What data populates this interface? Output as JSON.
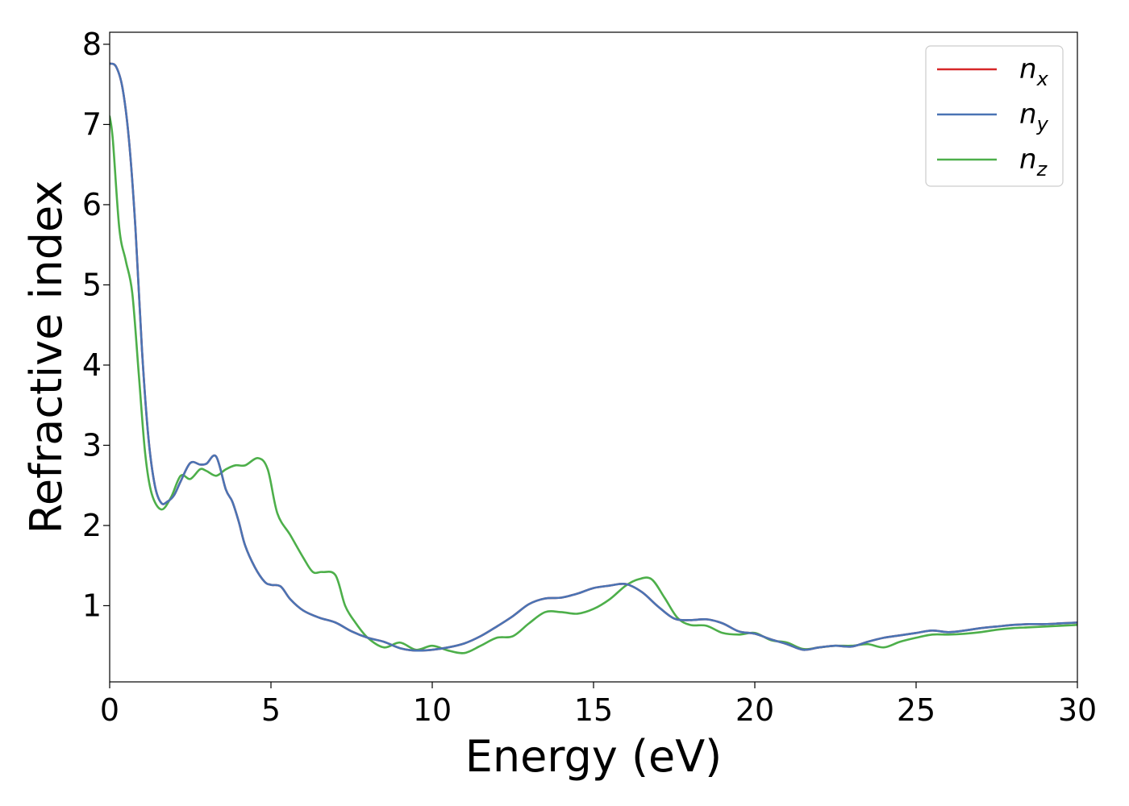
{
  "chart_data": {
    "type": "line",
    "xlabel": "Energy (eV)",
    "ylabel": "Refractive index",
    "xlim": [
      0,
      30
    ],
    "ylim": [
      0.05,
      8.15
    ],
    "xticks": [
      0,
      5,
      10,
      15,
      20,
      25,
      30
    ],
    "yticks": [
      1,
      2,
      3,
      4,
      5,
      6,
      7,
      8
    ],
    "grid": false,
    "legend_position": "top-right",
    "series": [
      {
        "name": "n",
        "sub": "x",
        "color": "#d62728",
        "x": [
          0,
          0.2,
          0.4,
          0.6,
          0.8,
          1.0,
          1.2,
          1.4,
          1.6,
          1.8,
          2.0,
          2.2,
          2.5,
          2.8,
          3.0,
          3.3,
          3.6,
          3.8,
          4.0,
          4.2,
          4.5,
          4.8,
          5.0,
          5.3,
          5.6,
          6.0,
          6.5,
          7.0,
          7.5,
          8.0,
          8.5,
          9.0,
          9.5,
          10.0,
          10.5,
          11.0,
          11.5,
          12.0,
          12.5,
          13.0,
          13.5,
          14.0,
          14.5,
          15.0,
          15.5,
          16.0,
          16.5,
          17.0,
          17.5,
          18.0,
          18.5,
          19.0,
          19.5,
          20.0,
          20.5,
          21.0,
          21.5,
          22.0,
          22.5,
          23.0,
          23.5,
          24.0,
          24.5,
          25.0,
          25.5,
          26.0,
          26.5,
          27.0,
          27.5,
          28.0,
          28.5,
          29.0,
          29.5,
          30.0
        ],
        "y": [
          7.76,
          7.72,
          7.45,
          6.8,
          5.7,
          4.2,
          3.1,
          2.5,
          2.28,
          2.3,
          2.38,
          2.55,
          2.78,
          2.76,
          2.77,
          2.86,
          2.45,
          2.3,
          2.05,
          1.75,
          1.48,
          1.3,
          1.26,
          1.24,
          1.08,
          0.94,
          0.85,
          0.79,
          0.68,
          0.6,
          0.55,
          0.47,
          0.44,
          0.45,
          0.48,
          0.53,
          0.62,
          0.74,
          0.87,
          1.02,
          1.09,
          1.1,
          1.15,
          1.22,
          1.25,
          1.27,
          1.17,
          0.99,
          0.84,
          0.82,
          0.83,
          0.78,
          0.68,
          0.65,
          0.58,
          0.52,
          0.45,
          0.48,
          0.5,
          0.49,
          0.55,
          0.6,
          0.63,
          0.66,
          0.69,
          0.67,
          0.69,
          0.72,
          0.74,
          0.76,
          0.77,
          0.77,
          0.78,
          0.79
        ]
      },
      {
        "name": "n",
        "sub": "y",
        "color": "#4a74b4",
        "x": [
          0,
          0.2,
          0.4,
          0.6,
          0.8,
          1.0,
          1.2,
          1.4,
          1.6,
          1.8,
          2.0,
          2.2,
          2.5,
          2.8,
          3.0,
          3.3,
          3.6,
          3.8,
          4.0,
          4.2,
          4.5,
          4.8,
          5.0,
          5.3,
          5.6,
          6.0,
          6.5,
          7.0,
          7.5,
          8.0,
          8.5,
          9.0,
          9.5,
          10.0,
          10.5,
          11.0,
          11.5,
          12.0,
          12.5,
          13.0,
          13.5,
          14.0,
          14.5,
          15.0,
          15.5,
          16.0,
          16.5,
          17.0,
          17.5,
          18.0,
          18.5,
          19.0,
          19.5,
          20.0,
          20.5,
          21.0,
          21.5,
          22.0,
          22.5,
          23.0,
          23.5,
          24.0,
          24.5,
          25.0,
          25.5,
          26.0,
          26.5,
          27.0,
          27.5,
          28.0,
          28.5,
          29.0,
          29.5,
          30.0
        ],
        "y": [
          7.76,
          7.72,
          7.45,
          6.8,
          5.7,
          4.2,
          3.1,
          2.5,
          2.28,
          2.3,
          2.38,
          2.55,
          2.78,
          2.76,
          2.77,
          2.86,
          2.45,
          2.3,
          2.05,
          1.75,
          1.48,
          1.3,
          1.26,
          1.24,
          1.08,
          0.94,
          0.85,
          0.79,
          0.68,
          0.6,
          0.55,
          0.47,
          0.44,
          0.45,
          0.48,
          0.53,
          0.62,
          0.74,
          0.87,
          1.02,
          1.09,
          1.1,
          1.15,
          1.22,
          1.25,
          1.27,
          1.17,
          0.99,
          0.84,
          0.82,
          0.83,
          0.78,
          0.68,
          0.65,
          0.58,
          0.52,
          0.45,
          0.48,
          0.5,
          0.49,
          0.55,
          0.6,
          0.63,
          0.66,
          0.69,
          0.67,
          0.69,
          0.72,
          0.74,
          0.76,
          0.77,
          0.77,
          0.78,
          0.79
        ]
      },
      {
        "name": "n",
        "sub": "z",
        "color": "#4daf4a",
        "x": [
          0,
          0.1,
          0.3,
          0.5,
          0.7,
          0.9,
          1.1,
          1.3,
          1.6,
          1.9,
          2.2,
          2.5,
          2.8,
          3.0,
          3.3,
          3.6,
          3.9,
          4.2,
          4.6,
          4.9,
          5.2,
          5.6,
          6.0,
          6.3,
          6.6,
          7.0,
          7.3,
          7.6,
          8.0,
          8.5,
          9.0,
          9.5,
          10.0,
          10.5,
          11.0,
          11.5,
          12.0,
          12.5,
          13.0,
          13.5,
          14.0,
          14.5,
          15.0,
          15.5,
          16.0,
          16.4,
          16.8,
          17.2,
          17.6,
          18.0,
          18.5,
          19.0,
          19.5,
          20.0,
          20.5,
          21.0,
          21.5,
          22.0,
          22.5,
          23.0,
          23.5,
          24.0,
          24.5,
          25.0,
          25.5,
          26.0,
          26.5,
          27.0,
          27.5,
          28.0,
          28.5,
          29.0,
          29.5,
          30.0
        ],
        "y": [
          7.1,
          6.8,
          5.7,
          5.3,
          4.9,
          3.9,
          2.9,
          2.4,
          2.2,
          2.35,
          2.62,
          2.58,
          2.7,
          2.68,
          2.62,
          2.7,
          2.75,
          2.75,
          2.84,
          2.7,
          2.15,
          1.88,
          1.6,
          1.42,
          1.42,
          1.38,
          1.0,
          0.8,
          0.6,
          0.48,
          0.54,
          0.45,
          0.5,
          0.44,
          0.41,
          0.5,
          0.6,
          0.62,
          0.78,
          0.92,
          0.92,
          0.9,
          0.96,
          1.08,
          1.25,
          1.33,
          1.33,
          1.1,
          0.85,
          0.76,
          0.75,
          0.66,
          0.64,
          0.66,
          0.57,
          0.54,
          0.46,
          0.48,
          0.5,
          0.5,
          0.52,
          0.48,
          0.55,
          0.6,
          0.64,
          0.64,
          0.65,
          0.67,
          0.7,
          0.72,
          0.73,
          0.74,
          0.75,
          0.76
        ]
      }
    ]
  }
}
